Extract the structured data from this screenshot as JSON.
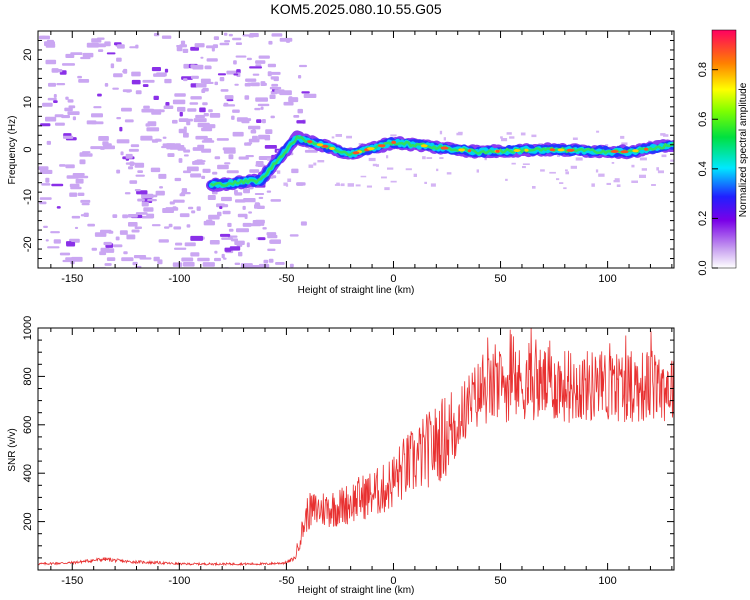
{
  "title": "KOM5.2025.080.10.55.G05",
  "chart_data": [
    {
      "type": "heatmap",
      "xlabel": "Height of straight line (km)",
      "ylabel": "Frequency (Hz)",
      "xlim": [
        -166,
        131
      ],
      "ylim": [
        -25,
        25
      ],
      "xticks": [
        -150,
        -100,
        -50,
        0,
        50,
        100
      ],
      "yticks": [
        20,
        10,
        0,
        -10,
        -20
      ],
      "colorbar": {
        "label": "Normalized spectral amplitude",
        "range": [
          0,
          0.96
        ],
        "ticks": [
          0.0,
          0.2,
          0.4,
          0.6,
          0.8
        ]
      },
      "ridge": {
        "description_points": [
          {
            "x": -85,
            "y": -7.5
          },
          {
            "x": -62,
            "y": -6.5
          },
          {
            "x": -50,
            "y": 0
          },
          {
            "x": -45,
            "y": 2.5
          },
          {
            "x": -20,
            "y": -1
          },
          {
            "x": 0,
            "y": 1.5
          },
          {
            "x": 40,
            "y": -0.5
          },
          {
            "x": 70,
            "y": 0
          },
          {
            "x": 110,
            "y": -0.5
          },
          {
            "x": 131,
            "y": 1
          }
        ]
      }
    },
    {
      "type": "line",
      "xlabel": "Height of straight line (km)",
      "ylabel": "SNR (v/v)",
      "xlim": [
        -166,
        131
      ],
      "ylim": [
        0,
        1000
      ],
      "xticks": [
        -150,
        -100,
        -50,
        0,
        50,
        100
      ],
      "yticks": [
        200,
        400,
        600,
        800,
        1000
      ],
      "color": "#e83030",
      "series": [
        {
          "x": [
            -166,
            -150,
            -140,
            -135,
            -125,
            -110,
            -100,
            -80,
            -60,
            -50,
            -46,
            -44,
            -40,
            -35,
            -25,
            -15,
            -5,
            0,
            5,
            10,
            15,
            20,
            25,
            30,
            35,
            40,
            50,
            60,
            70,
            80,
            90,
            100,
            110,
            120,
            131
          ],
          "values": [
            25,
            30,
            40,
            45,
            35,
            30,
            25,
            25,
            25,
            30,
            50,
            120,
            240,
            250,
            260,
            300,
            330,
            370,
            420,
            450,
            490,
            520,
            560,
            620,
            680,
            730,
            760,
            770,
            770,
            760,
            760,
            760,
            760,
            760,
            760
          ]
        }
      ]
    }
  ]
}
